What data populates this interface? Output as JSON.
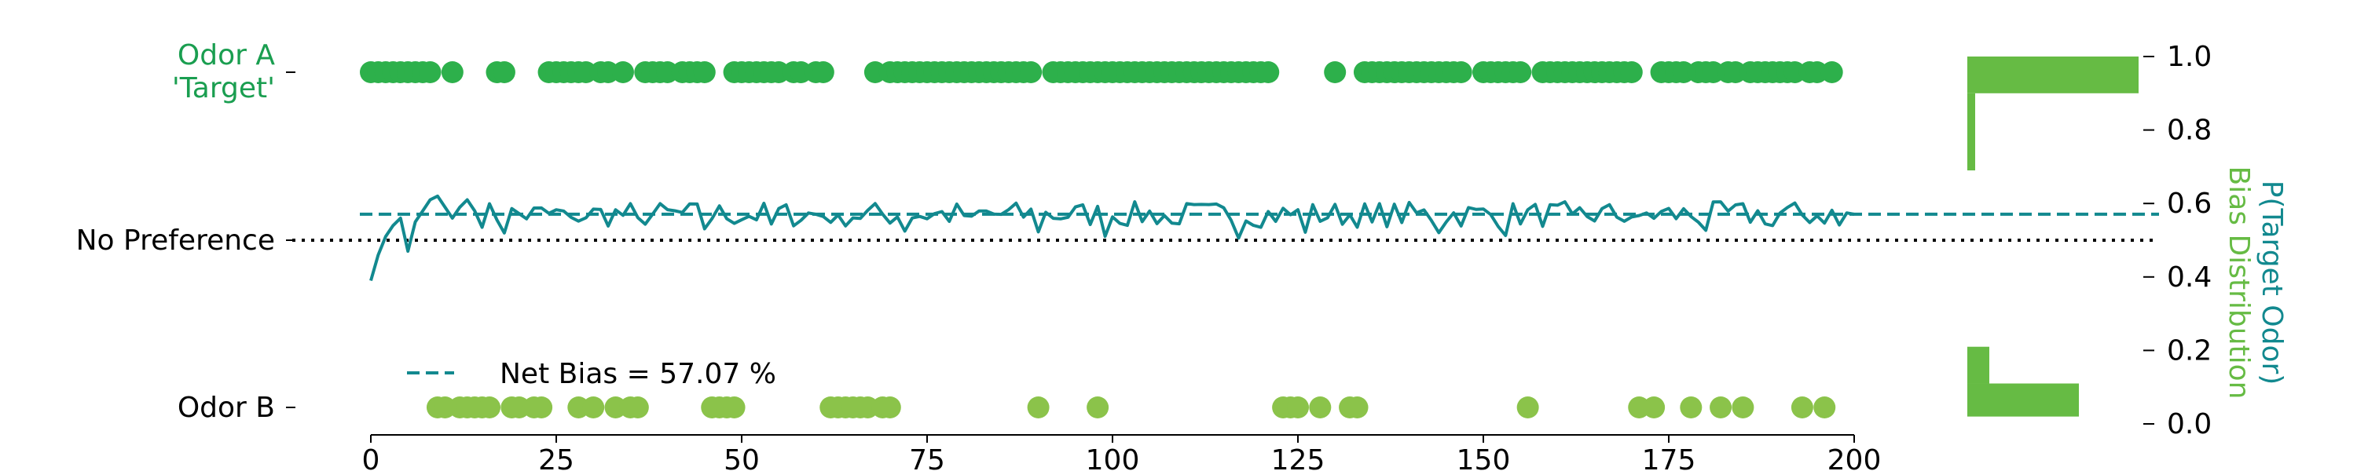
{
  "chart_data": {
    "type": "scatter",
    "x_ticks": [
      0,
      25,
      50,
      75,
      100,
      125,
      150,
      175,
      200
    ],
    "y_left_labels": [
      {
        "id": "odor-a",
        "lines": [
          "Odor A",
          "'Target'"
        ],
        "color": "#1a9e50"
      },
      {
        "id": "no-pref",
        "lines": [
          "No Preference"
        ],
        "color": "#000000"
      },
      {
        "id": "odor-b",
        "lines": [
          "Odor B"
        ],
        "color": "#000000"
      }
    ],
    "y_right_ticks": [
      "0.0",
      "0.2",
      "0.4",
      "0.6",
      "0.8",
      "1.0"
    ],
    "y_right_label_primary": "P(Target Odor)",
    "y_right_label_secondary": "Bias Distribution",
    "ylim_right": [
      0,
      1
    ],
    "net_bias": 0.5707,
    "legend_label": "Net Bias = 57.07 %",
    "no_preference_level": 0.5,
    "colors": {
      "odor_a": "#2db04b",
      "odor_b": "#8bc34a",
      "prob_line": "#12898f",
      "hist": "#66bb44",
      "right_label_primary": "#12898f",
      "right_label_secondary": "#66bb44"
    },
    "bias_distribution": {
      "odor_a_fraction": 0.86,
      "odor_b_fraction": 0.14
    }
  }
}
